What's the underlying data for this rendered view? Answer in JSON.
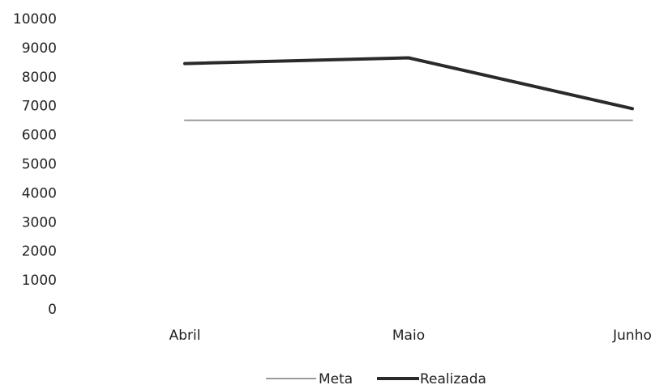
{
  "chart_data": {
    "type": "line",
    "categories": [
      "Abril",
      "Maio",
      "Junho"
    ],
    "series": [
      {
        "name": "Meta",
        "values": [
          6500,
          6500,
          6500
        ],
        "color": "#9a9a9a"
      },
      {
        "name": "Realizada",
        "values": [
          8450,
          8650,
          6900
        ],
        "color": "#2a2a2a"
      }
    ],
    "yticks": [
      "0",
      "1000",
      "2000",
      "3000",
      "4000",
      "5000",
      "6000",
      "7000",
      "8000",
      "9000",
      "10000"
    ],
    "ylim": [
      0,
      10000
    ],
    "grid": false,
    "legend_position": "bottom"
  }
}
